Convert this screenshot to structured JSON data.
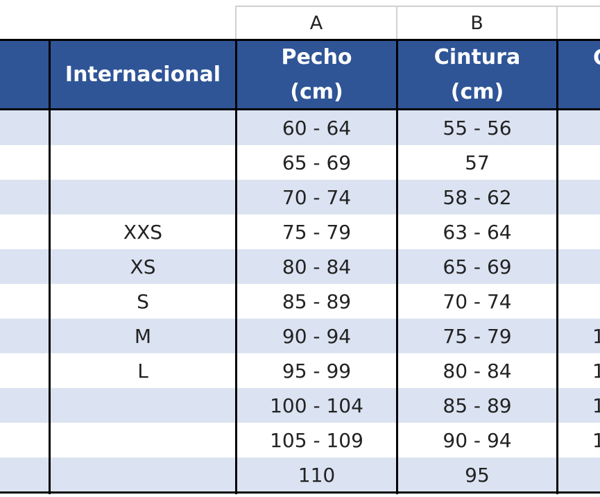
{
  "columns": {
    "a": "A",
    "b": "B"
  },
  "header": {
    "internacional": "Internacional",
    "pecho": [
      "Pecho",
      "(cm)"
    ],
    "cintura": [
      "Cintura",
      "(cm)"
    ],
    "next_partial": "C"
  },
  "rows": [
    {
      "intl": "",
      "pecho": "60 - 64",
      "cintura": "55 - 56",
      "next": ""
    },
    {
      "intl": "",
      "pecho": "65 - 69",
      "cintura": "57",
      "next": ""
    },
    {
      "intl": "",
      "pecho": "70 - 74",
      "cintura": "58 - 62",
      "next": ""
    },
    {
      "intl": "XXS",
      "pecho": "75 - 79",
      "cintura": "63 - 64",
      "next": ""
    },
    {
      "intl": "XS",
      "pecho": "80 - 84",
      "cintura": "65 - 69",
      "next": ""
    },
    {
      "intl": "S",
      "pecho": "85 - 89",
      "cintura": "70 - 74",
      "next": ""
    },
    {
      "intl": "M",
      "pecho": "90 - 94",
      "cintura": "75 - 79",
      "next": "1"
    },
    {
      "intl": "L",
      "pecho": "95 - 99",
      "cintura": "80 - 84",
      "next": "1"
    },
    {
      "intl": "",
      "pecho": "100 - 104",
      "cintura": "85 - 89",
      "next": "1"
    },
    {
      "intl": "",
      "pecho": "105 - 109",
      "cintura": "90 - 94",
      "next": "1"
    },
    {
      "intl": "",
      "pecho": "110",
      "cintura": "95",
      "next": ""
    }
  ]
}
